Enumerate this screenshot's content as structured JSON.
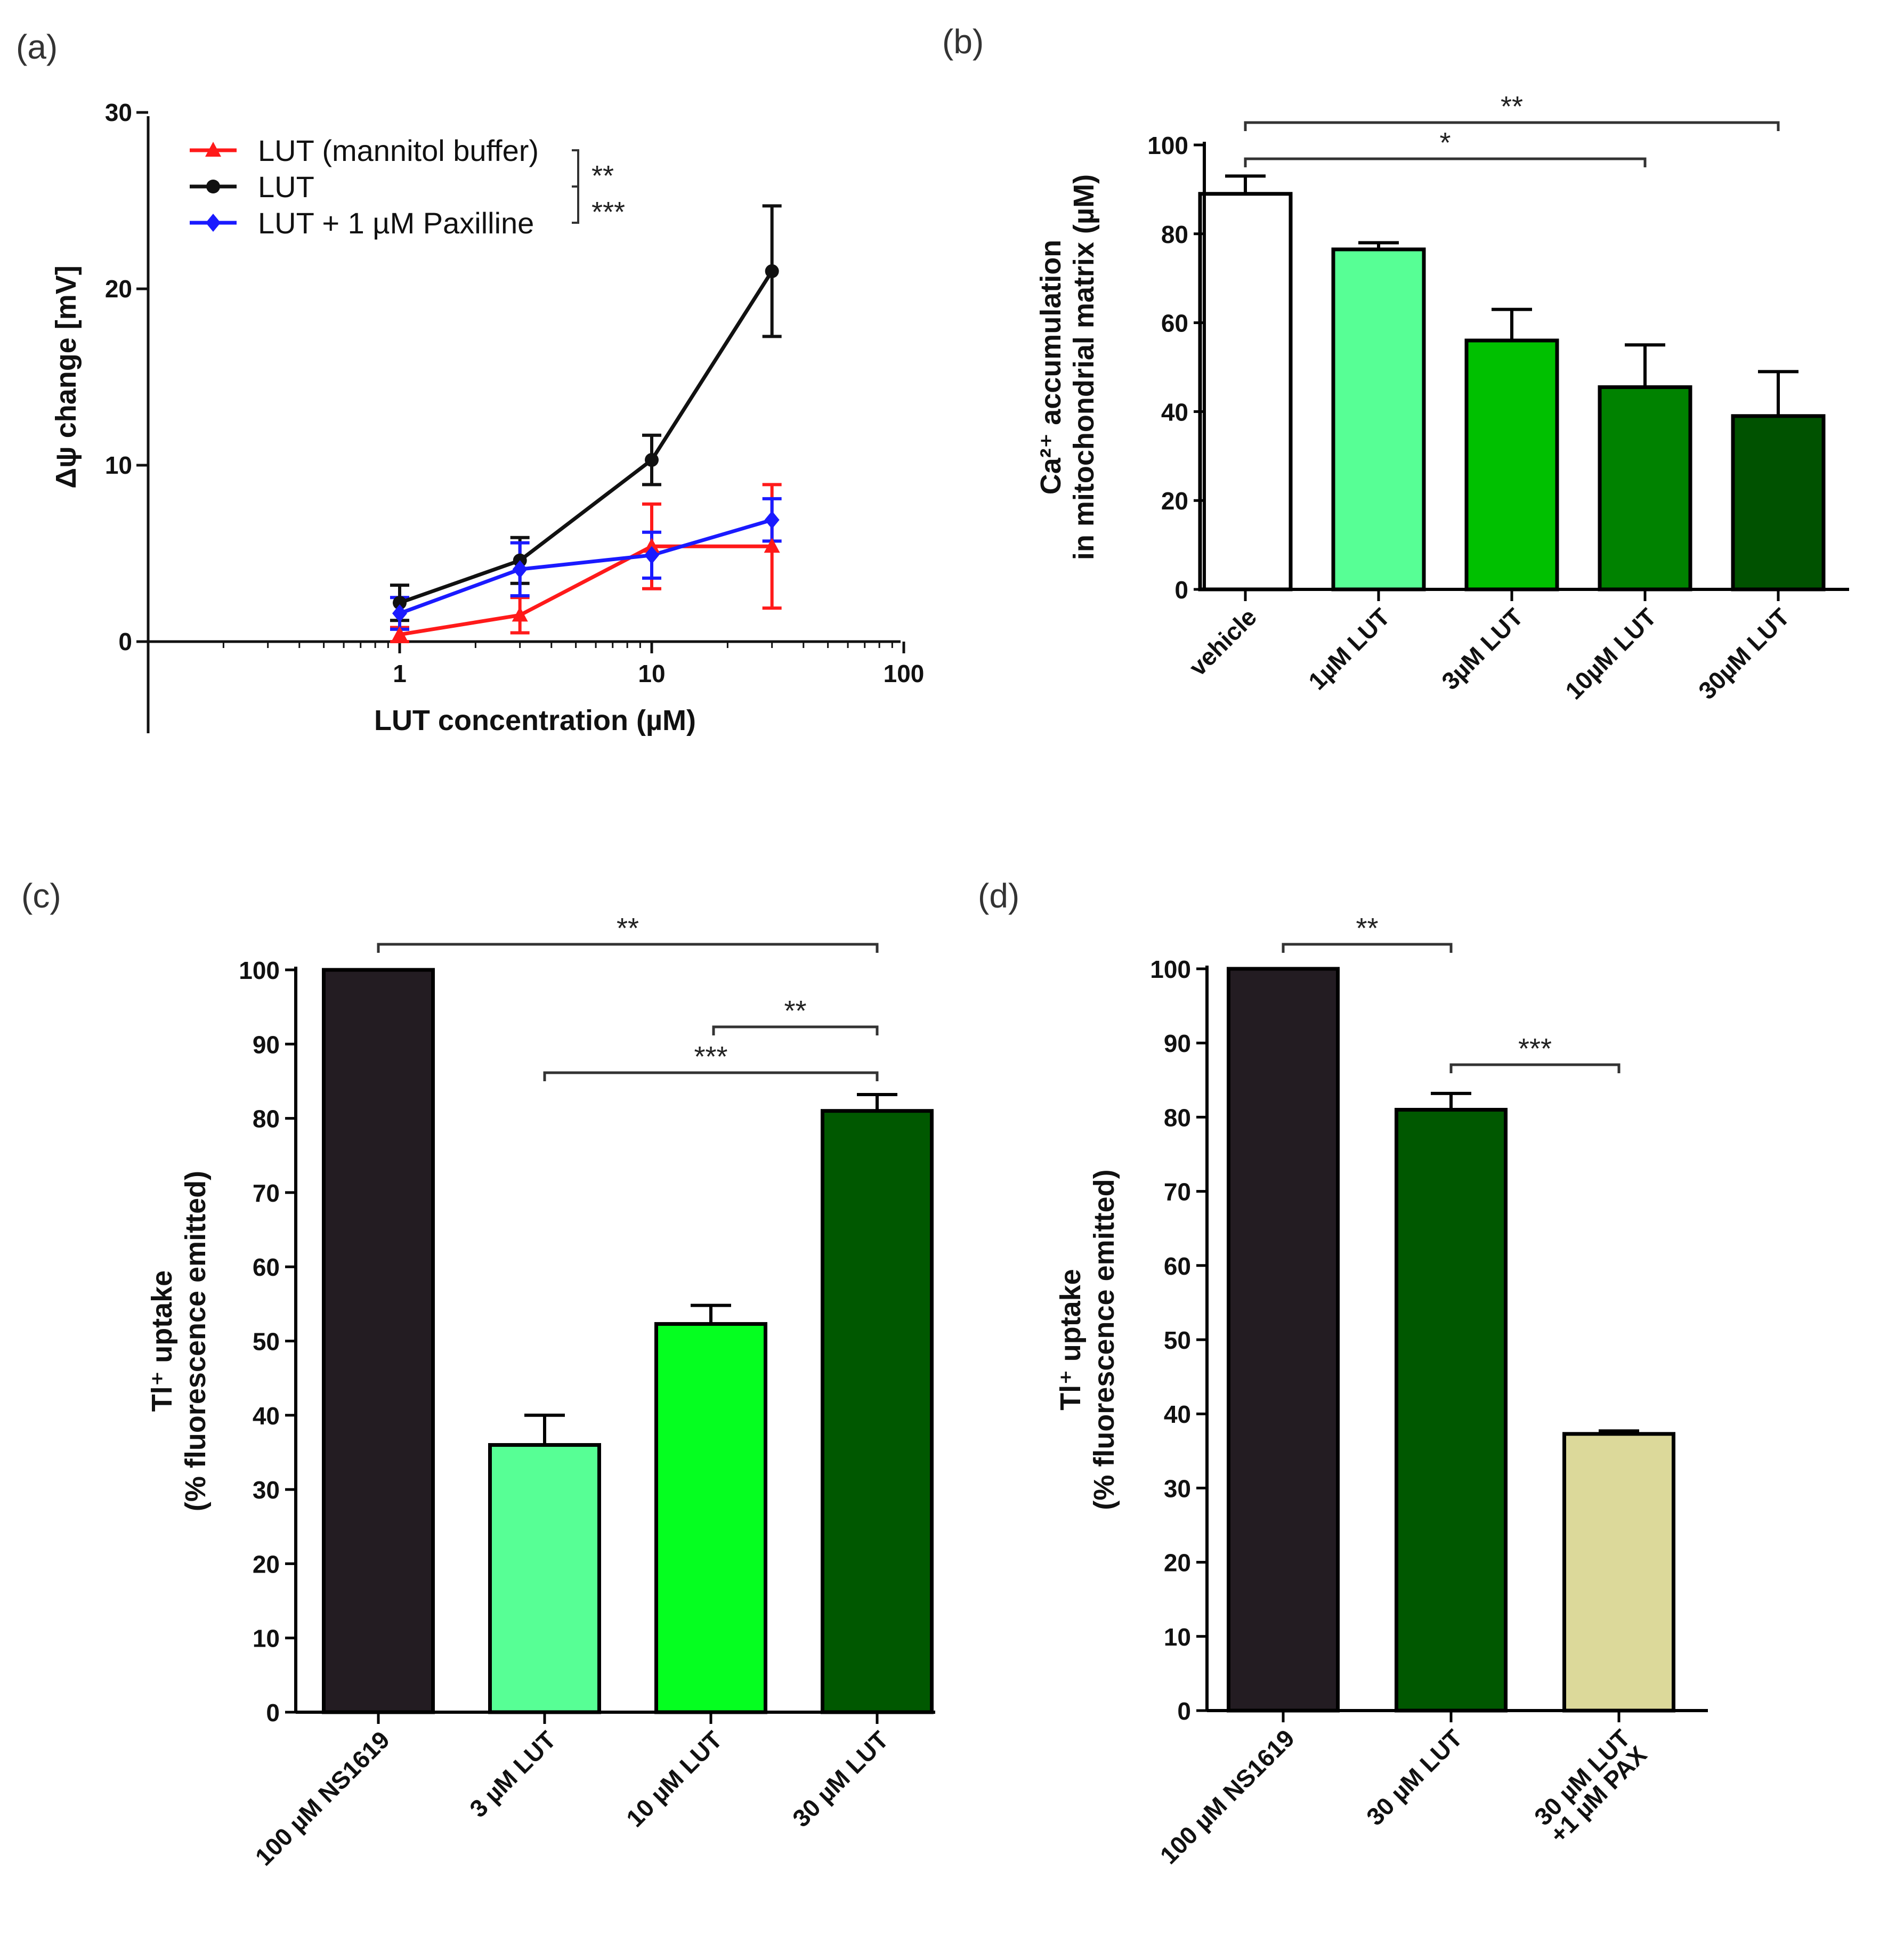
{
  "panel_labels": [
    "(a)",
    "(b)",
    "(c)",
    "(d)"
  ],
  "chart_data": [
    {
      "panel": "(a)",
      "type": "line",
      "xscale": "log",
      "xlabel": "LUT concentration (µM)",
      "ylabel": "Δψ change [mV]",
      "xlim": [
        0.1,
        100
      ],
      "ylim": [
        -5,
        30
      ],
      "xticks": [
        1,
        10,
        100
      ],
      "xtick_labels": [
        "1",
        "10",
        "100"
      ],
      "yticks": [
        0,
        10,
        20,
        30
      ],
      "ytick_labels": [
        "0",
        "10",
        "20",
        "30"
      ],
      "legend_position": "top-left",
      "series": [
        {
          "name": "LUT (mannitol buffer)",
          "color": "#ff1a1a",
          "marker": "triangle",
          "x": [
            1,
            3,
            10,
            30
          ],
          "y": [
            0.4,
            1.5,
            5.4,
            5.4
          ],
          "err": [
            0.4,
            1.0,
            2.4,
            3.5
          ]
        },
        {
          "name": "LUT",
          "color": "#111111",
          "marker": "circle",
          "x": [
            1,
            3,
            10,
            30
          ],
          "y": [
            2.2,
            4.6,
            10.3,
            21.0
          ],
          "err": [
            1.0,
            1.3,
            1.4,
            3.7
          ]
        },
        {
          "name": "LUT + 1 µM Paxilline",
          "color": "#1a1aff",
          "marker": "diamond",
          "x": [
            1,
            3,
            10,
            30
          ],
          "y": [
            1.6,
            4.1,
            4.9,
            6.9
          ],
          "err": [
            0.9,
            1.5,
            1.3,
            1.2
          ]
        }
      ],
      "significance": [
        {
          "label": "**",
          "between": [
            "LUT (mannitol buffer)",
            "LUT"
          ]
        },
        {
          "label": "***",
          "between": [
            "LUT",
            "LUT + 1 µM Paxilline"
          ]
        }
      ]
    },
    {
      "panel": "(b)",
      "type": "bar",
      "ylabel": "Ca²⁺ accumulation in mitochondrial matrix (µM)",
      "ylabel_lines": [
        "Ca²⁺ accumulation",
        "in mitochondrial matrix (µM)"
      ],
      "ylim": [
        0,
        100
      ],
      "yticks": [
        0,
        20,
        40,
        60,
        80,
        100
      ],
      "ytick_labels": [
        "0",
        "20",
        "40",
        "60",
        "80",
        "100"
      ],
      "categories": [
        "vehicle",
        "1µM LUT",
        "3µM LUT",
        "10µM LUT",
        "30µM LUT"
      ],
      "values": [
        89,
        76.5,
        56,
        45.5,
        39
      ],
      "errors": [
        4,
        1.5,
        7,
        9.5,
        10
      ],
      "colors": [
        "#ffffff",
        "#57ff95",
        "#00c000",
        "#008200",
        "#005200"
      ],
      "significance": [
        {
          "from": 0,
          "to": 4,
          "label": "**"
        },
        {
          "from": 0,
          "to": 3,
          "label": "*"
        }
      ]
    },
    {
      "panel": "(c)",
      "type": "bar",
      "ylabel": "Tl⁺ uptake (% fluorescence emitted)",
      "ylabel_lines": [
        "Tl⁺ uptake",
        "(% fluorescence emitted)"
      ],
      "ylim": [
        0,
        100
      ],
      "yticks": [
        0,
        10,
        20,
        30,
        40,
        50,
        60,
        70,
        80,
        90,
        100
      ],
      "ytick_labels": [
        "0",
        "10",
        "20",
        "30",
        "40",
        "50",
        "60",
        "70",
        "80",
        "90",
        "100"
      ],
      "categories": [
        "100 µM NS1619",
        "3 µM LUT",
        "10 µM LUT",
        "30 µM LUT"
      ],
      "values": [
        100,
        36,
        52.3,
        81
      ],
      "errors": [
        0,
        4,
        2.5,
        2.2
      ],
      "colors": [
        "#231c22",
        "#57ff95",
        "#05ff20",
        "#005800"
      ],
      "significance": [
        {
          "from": 0,
          "to": 3,
          "label": "**"
        },
        {
          "from": 2,
          "to": 3,
          "label": "**"
        },
        {
          "from": 1,
          "to": 3,
          "label": "***"
        }
      ]
    },
    {
      "panel": "(d)",
      "type": "bar",
      "ylabel": "Tl⁺ uptake (% fluorescence emitted)",
      "ylabel_lines": [
        "Tl⁺ uptake",
        "(% fluorescence emitted)"
      ],
      "ylim": [
        0,
        100
      ],
      "yticks": [
        0,
        10,
        20,
        30,
        40,
        50,
        60,
        70,
        80,
        90,
        100
      ],
      "ytick_labels": [
        "0",
        "10",
        "20",
        "30",
        "40",
        "50",
        "60",
        "70",
        "80",
        "90",
        "100"
      ],
      "categories": [
        "100 µM NS1619",
        "30 µM LUT",
        "30 µM LUT +1 µM PAX"
      ],
      "category_lines": [
        [
          "100 µM NS1619"
        ],
        [
          "30 µM LUT"
        ],
        [
          "30 µM LUT",
          "+1 µM PAX"
        ]
      ],
      "values": [
        100,
        81,
        37.3
      ],
      "errors": [
        0,
        2.2,
        0.4
      ],
      "colors": [
        "#231c22",
        "#005800",
        "#dcd99a"
      ],
      "significance": [
        {
          "from": 0,
          "to": 1,
          "label": "**"
        },
        {
          "from": 1,
          "to": 2,
          "label": "***"
        }
      ]
    }
  ]
}
